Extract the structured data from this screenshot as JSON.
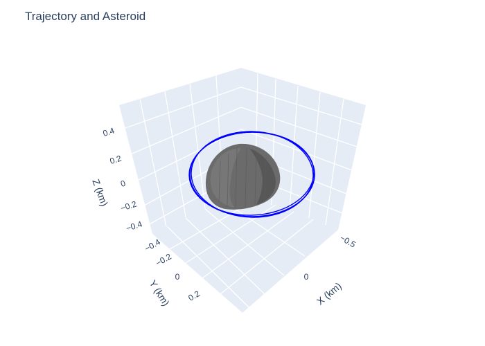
{
  "chart_data": {
    "type": "scatter3d",
    "title": "Trajectory and Asteroid",
    "axes": {
      "x": {
        "label": "X (km)",
        "ticks": [
          "−0.5",
          "0"
        ]
      },
      "y": {
        "label": "Y (km)",
        "ticks": [
          "−0.4",
          "−0.2",
          "0",
          "0.2"
        ]
      },
      "z": {
        "label": "Z (km)",
        "ticks": [
          "0.4",
          "0.2",
          "0",
          "−0.2",
          "−0.4"
        ]
      }
    },
    "series": [
      {
        "mode": "lines",
        "color": "#0000ff",
        "values": "near-circular orbit around the asteroid"
      },
      {
        "mode": "mesh",
        "color": "#6b6b6b",
        "values": "asteroid shape model"
      }
    ],
    "grid": true,
    "background": "#e5ecf6"
  }
}
